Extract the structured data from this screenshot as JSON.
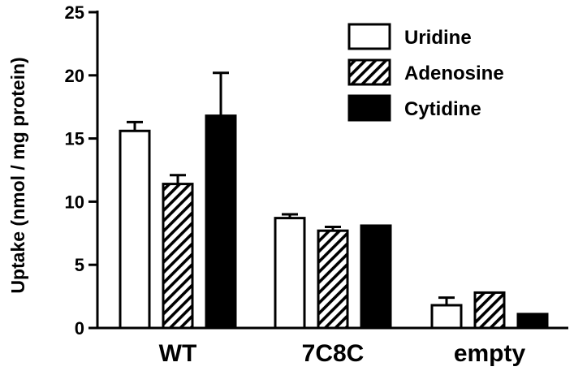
{
  "chart_data": {
    "type": "bar",
    "ylabel": "Uptake (nmol / mg protein)",
    "xlabel": "",
    "ylim": [
      0,
      25
    ],
    "yticks": [
      0,
      5,
      10,
      15,
      20,
      25
    ],
    "categories": [
      "WT",
      "7C8C",
      "empty"
    ],
    "series": [
      {
        "name": "Uridine",
        "fill": "open",
        "values": [
          15.6,
          8.7,
          1.8
        ],
        "errors": [
          0.7,
          0.3,
          0.6
        ]
      },
      {
        "name": "Adenosine",
        "fill": "hatched",
        "values": [
          11.4,
          7.7,
          2.8
        ],
        "errors": [
          0.7,
          0.3,
          0.0
        ]
      },
      {
        "name": "Cytidine",
        "fill": "solid",
        "values": [
          16.8,
          8.1,
          1.1
        ],
        "errors": [
          3.4,
          0.0,
          0.0
        ]
      }
    ],
    "legend": "top-right",
    "error_bars": "upper",
    "grid": false
  },
  "colors": {
    "ink": "#000000",
    "background": "#ffffff"
  }
}
